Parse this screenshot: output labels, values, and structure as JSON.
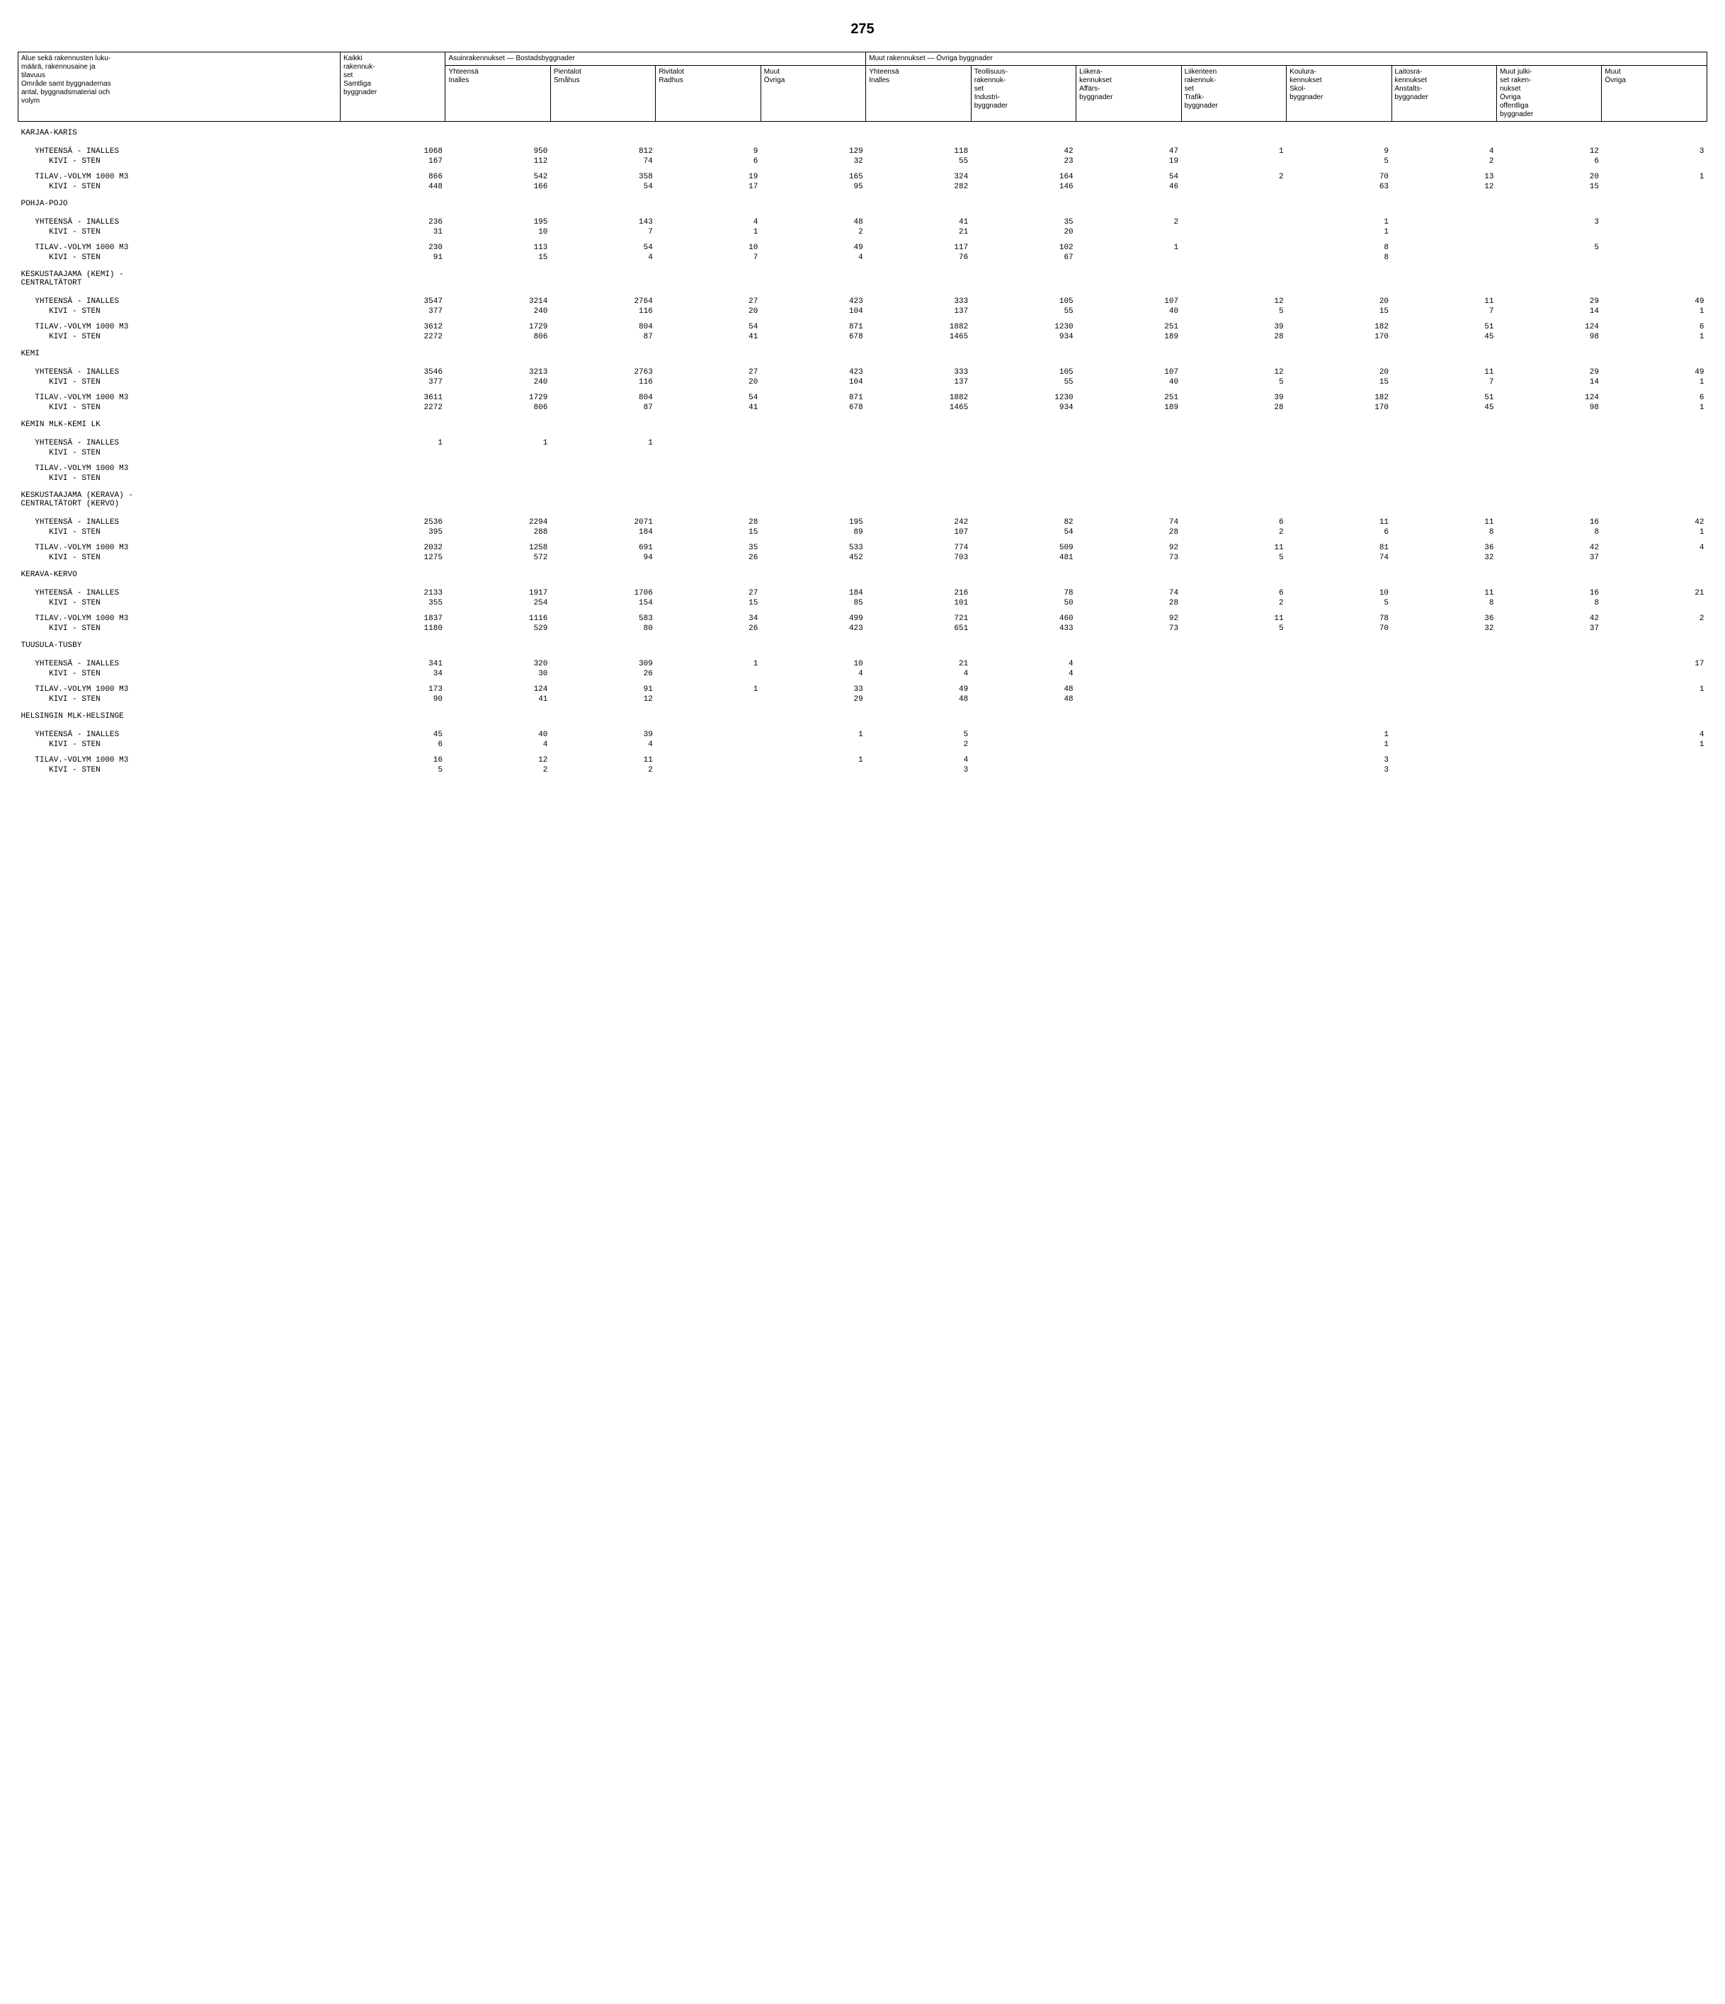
{
  "page_number": "275",
  "headers": {
    "col0": "Alue sekä rakennusten luku-\nmäärä, rakennusaine ja\ntilavuus\nOmråde samt byggnadernas\nantal, byggnadsmaterial och\nvolym",
    "col1": "Kaikki\nrakennuk-\nset\nSamtliga\nbyggnader",
    "group_a": "Asuinrakennukset — Bostadsbyggnader",
    "group_b": "Muut rakennukset — Övriga byggnader",
    "a1": "Yhteensä\nInalles",
    "a2": "Pientalot\nSmåhus",
    "a3": "Rivitalot\nRadhus",
    "a4": "Muut\nÖvriga",
    "b1": "Yhteensä\nInalles",
    "b2": "Teollisuus-\nrakennuk-\nset\nIndustri-\nbyggnader",
    "b3": "Liikera-\nkennukset\nAffärs-\nbyggnader",
    "b4": "Liikenteen\nrakennuk-\nset\nTrafik-\nbyggnader",
    "b5": "Koulura-\nkennukset\nSkol-\nbyggnader",
    "b6": "Laitosra-\nkennukset\nAnstalts-\nbyggnader",
    "b7": "Muut julki-\nset raken-\nnukset\nÖvriga\noffentliga\nbyggnader",
    "b8": "Muut\nÖvriga"
  },
  "row_labels": {
    "yht": "   YHTEENSÄ - INALLES",
    "kivi": "      KIVI - STEN",
    "tilav": "   TILAV.-VOLYM 1000 M3",
    "kivi2": "      KIVI - STEN"
  },
  "sections": [
    {
      "title": "KARJAA-KARIS",
      "blocks": [
        {
          "r1": [
            "1068",
            "950",
            "812",
            "9",
            "129",
            "118",
            "42",
            "47",
            "1",
            "9",
            "4",
            "12",
            "3"
          ],
          "r2": [
            "167",
            "112",
            "74",
            "6",
            "32",
            "55",
            "23",
            "19",
            "",
            "5",
            "2",
            "6",
            ""
          ]
        },
        {
          "r1": [
            "866",
            "542",
            "358",
            "19",
            "165",
            "324",
            "164",
            "54",
            "2",
            "70",
            "13",
            "20",
            "1"
          ],
          "r2": [
            "448",
            "166",
            "54",
            "17",
            "95",
            "282",
            "146",
            "46",
            "",
            "63",
            "12",
            "15",
            ""
          ]
        }
      ]
    },
    {
      "title": "POHJA-POJO",
      "blocks": [
        {
          "r1": [
            "236",
            "195",
            "143",
            "4",
            "48",
            "41",
            "35",
            "2",
            "",
            "1",
            "",
            "3",
            ""
          ],
          "r2": [
            "31",
            "10",
            "7",
            "1",
            "2",
            "21",
            "20",
            "",
            "",
            "1",
            "",
            "",
            ""
          ]
        },
        {
          "r1": [
            "230",
            "113",
            "54",
            "10",
            "49",
            "117",
            "102",
            "1",
            "",
            "8",
            "",
            "5",
            ""
          ],
          "r2": [
            "91",
            "15",
            "4",
            "7",
            "4",
            "76",
            "67",
            "",
            "",
            "8",
            "",
            "",
            ""
          ]
        }
      ]
    },
    {
      "title": "KESKUSTAAJAMA (KEMI) -\nCENTRALTÄTORT",
      "blocks": [
        {
          "r1": [
            "3547",
            "3214",
            "2764",
            "27",
            "423",
            "333",
            "105",
            "107",
            "12",
            "20",
            "11",
            "29",
            "49"
          ],
          "r2": [
            "377",
            "240",
            "116",
            "20",
            "104",
            "137",
            "55",
            "40",
            "5",
            "15",
            "7",
            "14",
            "1"
          ]
        },
        {
          "r1": [
            "3612",
            "1729",
            "804",
            "54",
            "871",
            "1882",
            "1230",
            "251",
            "39",
            "182",
            "51",
            "124",
            "6"
          ],
          "r2": [
            "2272",
            "806",
            "87",
            "41",
            "678",
            "1465",
            "934",
            "189",
            "28",
            "170",
            "45",
            "98",
            "1"
          ]
        }
      ]
    },
    {
      "title": "KEMI",
      "blocks": [
        {
          "r1": [
            "3546",
            "3213",
            "2763",
            "27",
            "423",
            "333",
            "105",
            "107",
            "12",
            "20",
            "11",
            "29",
            "49"
          ],
          "r2": [
            "377",
            "240",
            "116",
            "20",
            "104",
            "137",
            "55",
            "40",
            "5",
            "15",
            "7",
            "14",
            "1"
          ]
        },
        {
          "r1": [
            "3611",
            "1729",
            "804",
            "54",
            "871",
            "1882",
            "1230",
            "251",
            "39",
            "182",
            "51",
            "124",
            "6"
          ],
          "r2": [
            "2272",
            "806",
            "87",
            "41",
            "678",
            "1465",
            "934",
            "189",
            "28",
            "170",
            "45",
            "98",
            "1"
          ]
        }
      ]
    },
    {
      "title": "KEMIN MLK-KEMI LK",
      "blocks": [
        {
          "r1": [
            "1",
            "1",
            "1",
            "",
            "",
            "",
            "",
            "",
            "",
            "",
            "",
            "",
            ""
          ],
          "r2": [
            "",
            "",
            "",
            "",
            "",
            "",
            "",
            "",
            "",
            "",
            "",
            "",
            ""
          ]
        },
        {
          "r1": [
            "",
            "",
            "",
            "",
            "",
            "",
            "",
            "",
            "",
            "",
            "",
            "",
            ""
          ],
          "r2": [
            "",
            "",
            "",
            "",
            "",
            "",
            "",
            "",
            "",
            "",
            "",
            "",
            ""
          ]
        }
      ]
    },
    {
      "title": "KESKUSTAAJAMA (KERAVA) -\nCENTRALTÄTORT (KERVO)",
      "blocks": [
        {
          "r1": [
            "2536",
            "2294",
            "2071",
            "28",
            "195",
            "242",
            "82",
            "74",
            "6",
            "11",
            "11",
            "16",
            "42"
          ],
          "r2": [
            "395",
            "288",
            "184",
            "15",
            "89",
            "107",
            "54",
            "28",
            "2",
            "6",
            "8",
            "8",
            "1"
          ]
        },
        {
          "r1": [
            "2032",
            "1258",
            "691",
            "35",
            "533",
            "774",
            "509",
            "92",
            "11",
            "81",
            "36",
            "42",
            "4"
          ],
          "r2": [
            "1275",
            "572",
            "94",
            "26",
            "452",
            "703",
            "481",
            "73",
            "5",
            "74",
            "32",
            "37",
            ""
          ]
        }
      ]
    },
    {
      "title": "KERAVA-KERVO",
      "blocks": [
        {
          "r1": [
            "2133",
            "1917",
            "1706",
            "27",
            "184",
            "216",
            "78",
            "74",
            "6",
            "10",
            "11",
            "16",
            "21"
          ],
          "r2": [
            "355",
            "254",
            "154",
            "15",
            "85",
            "101",
            "50",
            "28",
            "2",
            "5",
            "8",
            "8",
            ""
          ]
        },
        {
          "r1": [
            "1837",
            "1116",
            "583",
            "34",
            "499",
            "721",
            "460",
            "92",
            "11",
            "78",
            "36",
            "42",
            "2"
          ],
          "r2": [
            "1180",
            "529",
            "80",
            "26",
            "423",
            "651",
            "433",
            "73",
            "5",
            "70",
            "32",
            "37",
            ""
          ]
        }
      ]
    },
    {
      "title": "TUUSULA-TUSBY",
      "blocks": [
        {
          "r1": [
            "341",
            "320",
            "309",
            "1",
            "10",
            "21",
            "4",
            "",
            "",
            "",
            "",
            "",
            "17"
          ],
          "r2": [
            "34",
            "30",
            "26",
            "",
            "4",
            "4",
            "4",
            "",
            "",
            "",
            "",
            "",
            ""
          ]
        },
        {
          "r1": [
            "173",
            "124",
            "91",
            "1",
            "33",
            "49",
            "48",
            "",
            "",
            "",
            "",
            "",
            "1"
          ],
          "r2": [
            "90",
            "41",
            "12",
            "",
            "29",
            "48",
            "48",
            "",
            "",
            "",
            "",
            "",
            ""
          ]
        }
      ]
    },
    {
      "title": "HELSINGIN MLK-HELSINGE",
      "blocks": [
        {
          "r1": [
            "45",
            "40",
            "39",
            "",
            "1",
            "5",
            "",
            "",
            "",
            "1",
            "",
            "",
            "4"
          ],
          "r2": [
            "6",
            "4",
            "4",
            "",
            "",
            "2",
            "",
            "",
            "",
            "1",
            "",
            "",
            "1"
          ]
        },
        {
          "r1": [
            "16",
            "12",
            "11",
            "",
            "1",
            "4",
            "",
            "",
            "",
            "3",
            "",
            "",
            ""
          ],
          "r2": [
            "5",
            "2",
            "2",
            "",
            "",
            "3",
            "",
            "",
            "",
            "3",
            "",
            "",
            ""
          ]
        }
      ]
    }
  ]
}
